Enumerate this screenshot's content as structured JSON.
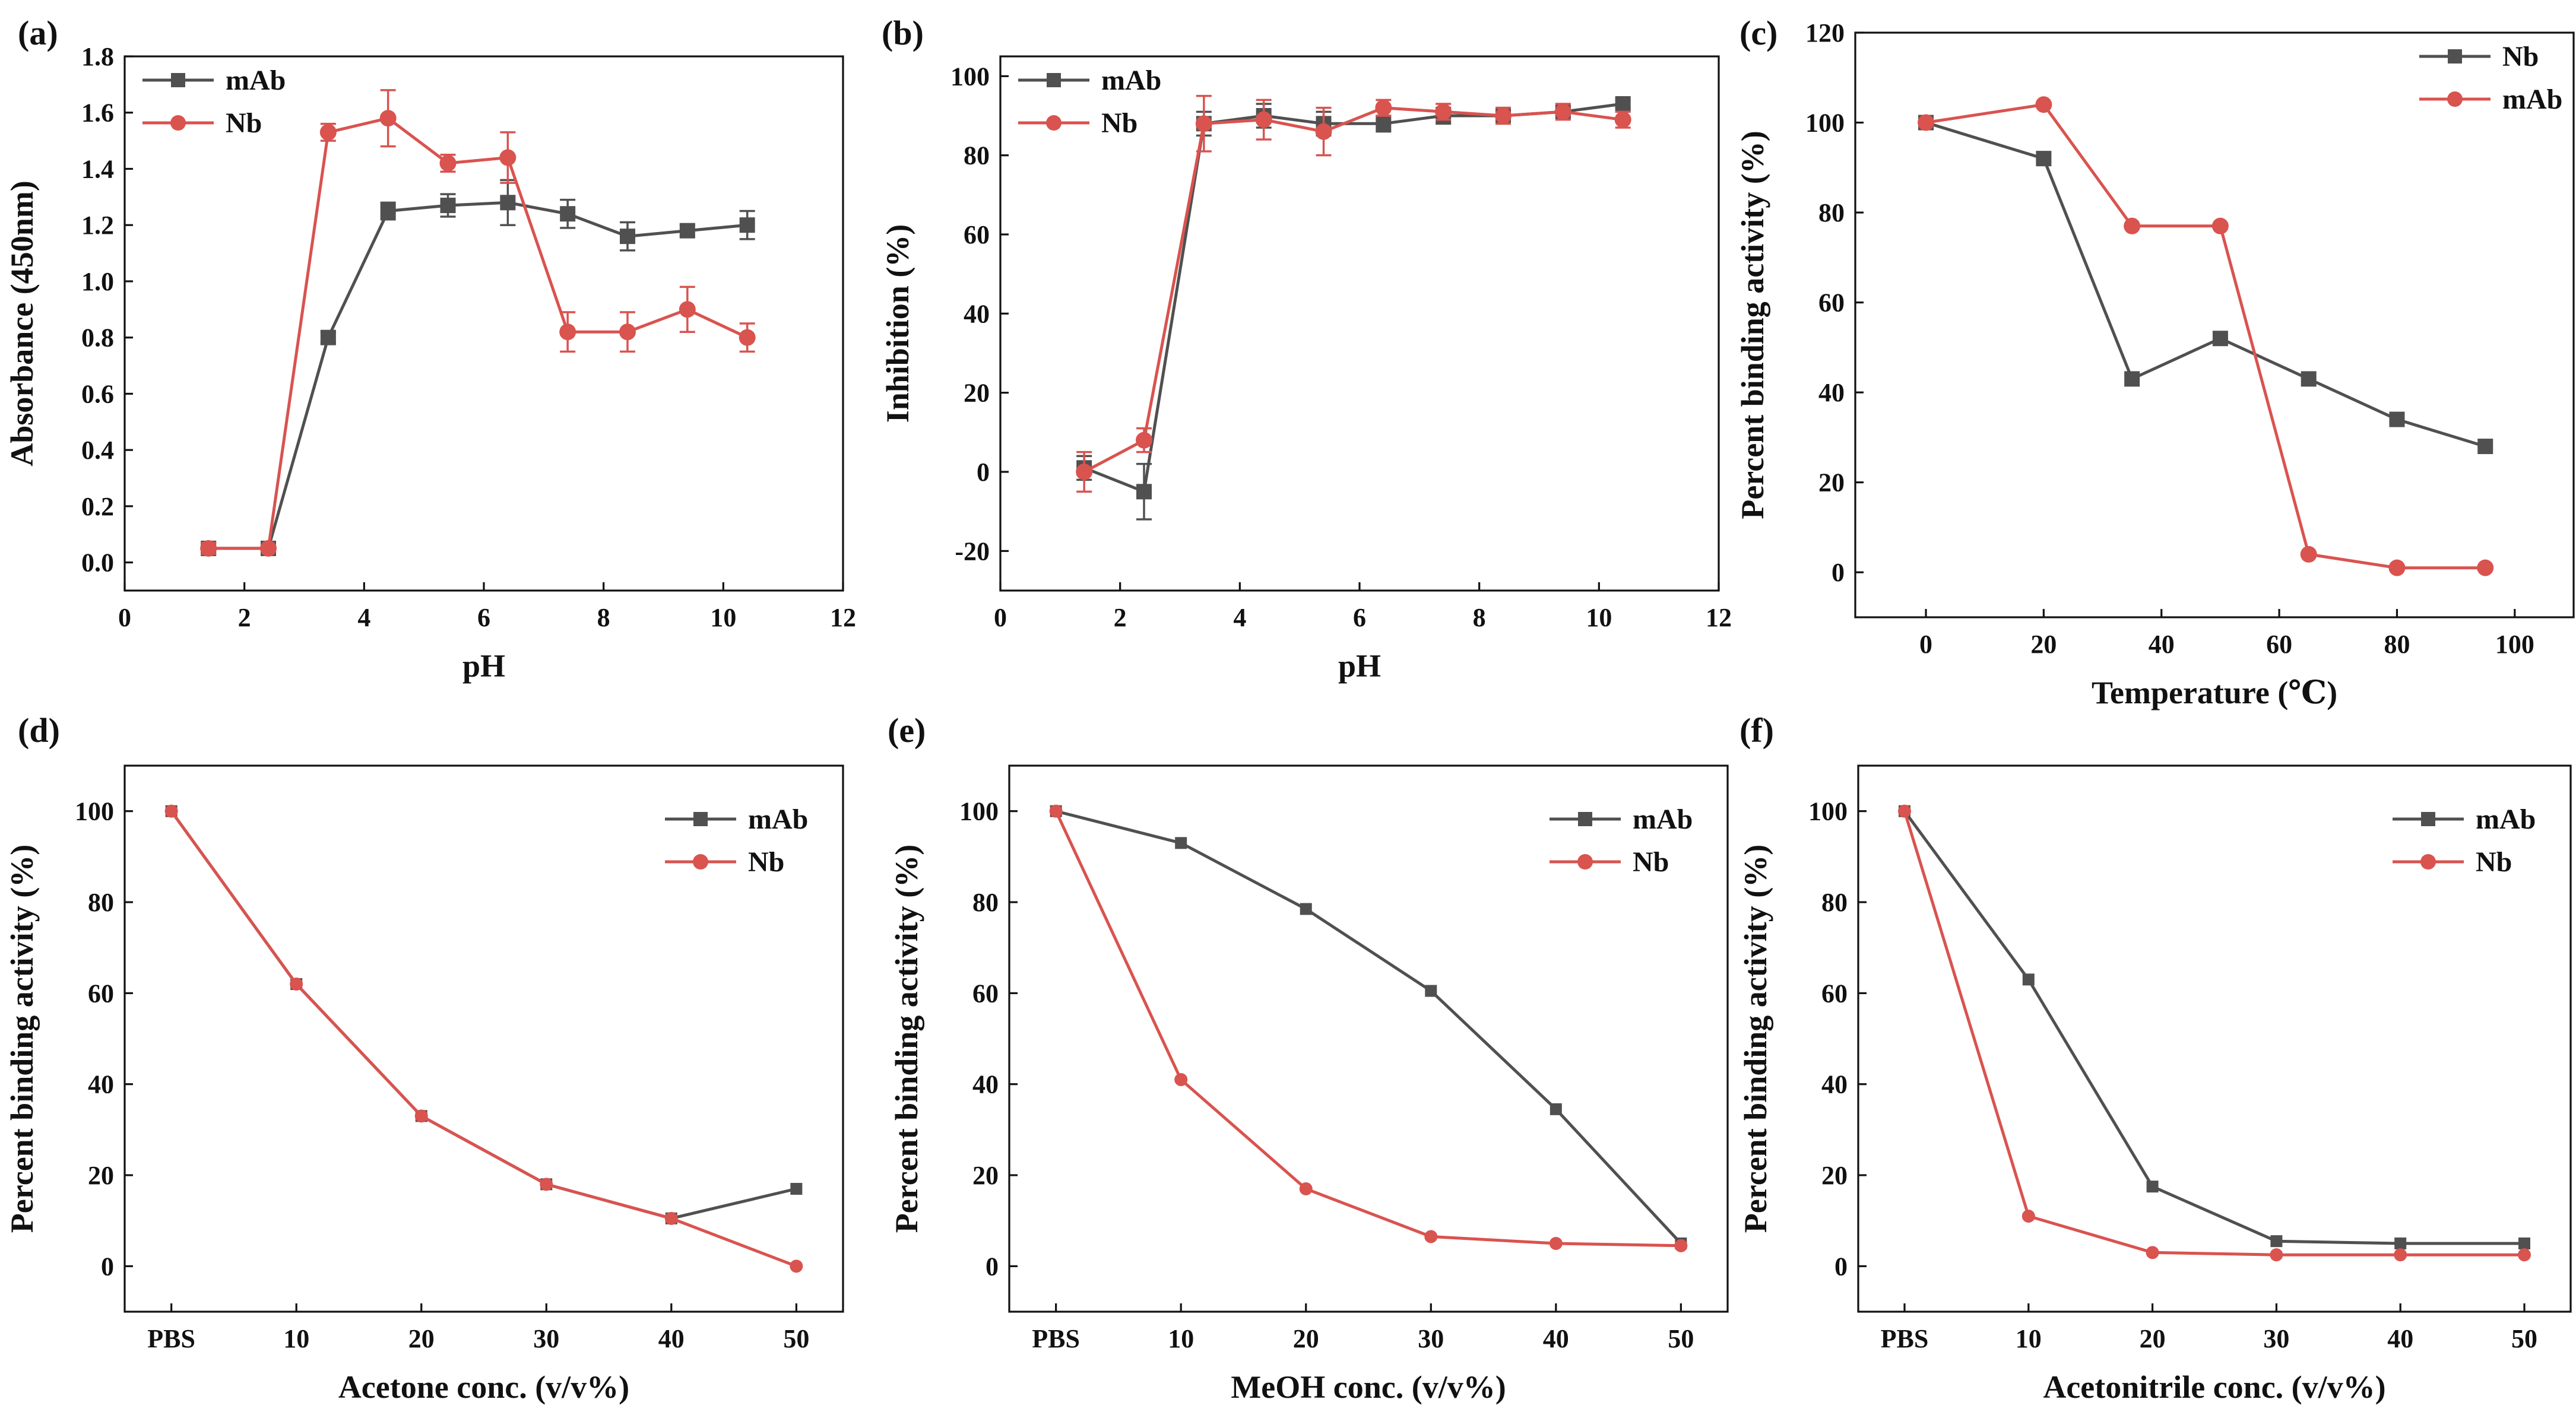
{
  "chart_data": [
    {
      "type": "line",
      "panel": "(a)",
      "title": "",
      "xlabel": "pH",
      "ylabel": "Absorbance (450nm)",
      "xlim": [
        0,
        12
      ],
      "ylim": [
        -0.1,
        1.8
      ],
      "xticks": [
        0,
        2,
        4,
        6,
        8,
        10,
        12
      ],
      "yticks": [
        0.0,
        0.2,
        0.4,
        0.6,
        0.8,
        1.0,
        1.2,
        1.4,
        1.6,
        1.8
      ],
      "legend": "top-left",
      "series": [
        {
          "name": "mAb",
          "color": "#505050",
          "marker": "square",
          "x": [
            1.4,
            2.4,
            3.4,
            4.4,
            5.4,
            6.4,
            7.4,
            8.4,
            9.4,
            10.4
          ],
          "y": [
            0.05,
            0.05,
            0.8,
            1.25,
            1.27,
            1.28,
            1.24,
            1.16,
            1.18,
            1.2
          ],
          "err": [
            0.02,
            0.01,
            0.02,
            0.03,
            0.04,
            0.08,
            0.05,
            0.05,
            0.02,
            0.05
          ]
        },
        {
          "name": "Nb",
          "color": "#d9534f",
          "marker": "circle",
          "x": [
            1.4,
            2.4,
            3.4,
            4.4,
            5.4,
            6.4,
            7.4,
            8.4,
            9.4,
            10.4
          ],
          "y": [
            0.05,
            0.05,
            1.53,
            1.58,
            1.42,
            1.44,
            0.82,
            0.82,
            0.9,
            0.8
          ],
          "err": [
            0.02,
            0.01,
            0.03,
            0.1,
            0.03,
            0.09,
            0.07,
            0.07,
            0.08,
            0.05
          ]
        }
      ]
    },
    {
      "type": "line",
      "panel": "(b)",
      "title": "",
      "xlabel": "pH",
      "ylabel": "Inhibition (%)",
      "xlim": [
        0,
        12
      ],
      "ylim": [
        -30,
        105
      ],
      "xticks": [
        0,
        2,
        4,
        6,
        8,
        10,
        12
      ],
      "yticks": [
        -20,
        0,
        20,
        40,
        60,
        80,
        100
      ],
      "legend": "top-left",
      "series": [
        {
          "name": "mAb",
          "color": "#505050",
          "marker": "square",
          "x": [
            1.4,
            2.4,
            3.4,
            4.4,
            5.4,
            6.4,
            7.4,
            8.4,
            9.4,
            10.4
          ],
          "y": [
            1,
            -5,
            88,
            90,
            88,
            88,
            90,
            90,
            91,
            93
          ],
          "err": [
            3,
            7,
            3,
            3,
            3,
            2,
            2,
            2,
            1,
            1
          ]
        },
        {
          "name": "Nb",
          "color": "#d9534f",
          "marker": "circle",
          "x": [
            1.4,
            2.4,
            3.4,
            4.4,
            5.4,
            6.4,
            7.4,
            8.4,
            9.4,
            10.4
          ],
          "y": [
            0,
            8,
            88,
            89,
            86,
            92,
            91,
            90,
            91,
            89
          ],
          "err": [
            5,
            3,
            7,
            5,
            6,
            2,
            2,
            2,
            2,
            2
          ]
        }
      ]
    },
    {
      "type": "line",
      "panel": "(c)",
      "title": "",
      "xlabel": "Temperature (℃)",
      "ylabel": "Percent binding activity (%)",
      "xlim": [
        -12,
        110
      ],
      "ylim": [
        -10,
        120
      ],
      "xticks": [
        0,
        20,
        40,
        60,
        80,
        100
      ],
      "yticks": [
        0,
        20,
        40,
        60,
        80,
        100,
        120
      ],
      "legend": "top-right",
      "series": [
        {
          "name": "Nb",
          "color": "#505050",
          "marker": "square",
          "x": [
            0,
            20,
            35,
            50,
            65,
            80,
            95
          ],
          "y": [
            100,
            92,
            43,
            52,
            43,
            34,
            28
          ]
        },
        {
          "name": "mAb",
          "color": "#d9534f",
          "marker": "circle",
          "x": [
            0,
            20,
            35,
            50,
            65,
            80,
            95
          ],
          "y": [
            100,
            104,
            77,
            77,
            4,
            1,
            1
          ]
        }
      ]
    },
    {
      "type": "line",
      "panel": "(d)",
      "title": "",
      "xlabel": "Acetone conc. (v/v%)",
      "ylabel": "Percent binding activity (%)",
      "categories": [
        "PBS",
        "10",
        "20",
        "30",
        "40",
        "50"
      ],
      "ylim": [
        -10,
        110
      ],
      "yticks": [
        0,
        20,
        40,
        60,
        80,
        100
      ],
      "legend": "top-right",
      "series": [
        {
          "name": "mAb",
          "color": "#505050",
          "marker": "square",
          "values": [
            100,
            62,
            33,
            18,
            10.5,
            17
          ]
        },
        {
          "name": "Nb",
          "color": "#d9534f",
          "marker": "circle",
          "values": [
            100,
            62,
            33,
            18,
            10.5,
            0
          ]
        }
      ]
    },
    {
      "type": "line",
      "panel": "(e)",
      "title": "",
      "xlabel": "MeOH conc. (v/v%)",
      "ylabel": "Percent binding activity (%)",
      "categories": [
        "PBS",
        "10",
        "20",
        "30",
        "40",
        "50"
      ],
      "ylim": [
        -10,
        110
      ],
      "yticks": [
        0,
        20,
        40,
        60,
        80,
        100
      ],
      "legend": "top-right",
      "series": [
        {
          "name": "mAb",
          "color": "#505050",
          "marker": "square",
          "values": [
            100,
            93,
            78.5,
            60.5,
            34.5,
            5
          ]
        },
        {
          "name": "Nb",
          "color": "#d9534f",
          "marker": "circle",
          "values": [
            100,
            41,
            17,
            6.5,
            5,
            4.5
          ]
        }
      ]
    },
    {
      "type": "line",
      "panel": "(f)",
      "title": "",
      "xlabel": "Acetonitrile conc. (v/v%)",
      "ylabel": "Percent binding activity (%)",
      "categories": [
        "PBS",
        "10",
        "20",
        "30",
        "40",
        "50"
      ],
      "ylim": [
        -10,
        110
      ],
      "yticks": [
        0,
        20,
        40,
        60,
        80,
        100
      ],
      "legend": "top-right",
      "series": [
        {
          "name": "mAb",
          "color": "#505050",
          "marker": "square",
          "values": [
            100,
            63,
            17.5,
            5.5,
            5,
            5
          ]
        },
        {
          "name": "Nb",
          "color": "#d9534f",
          "marker": "circle",
          "values": [
            100,
            11,
            3,
            2.5,
            2.5,
            2.5
          ]
        }
      ]
    }
  ]
}
